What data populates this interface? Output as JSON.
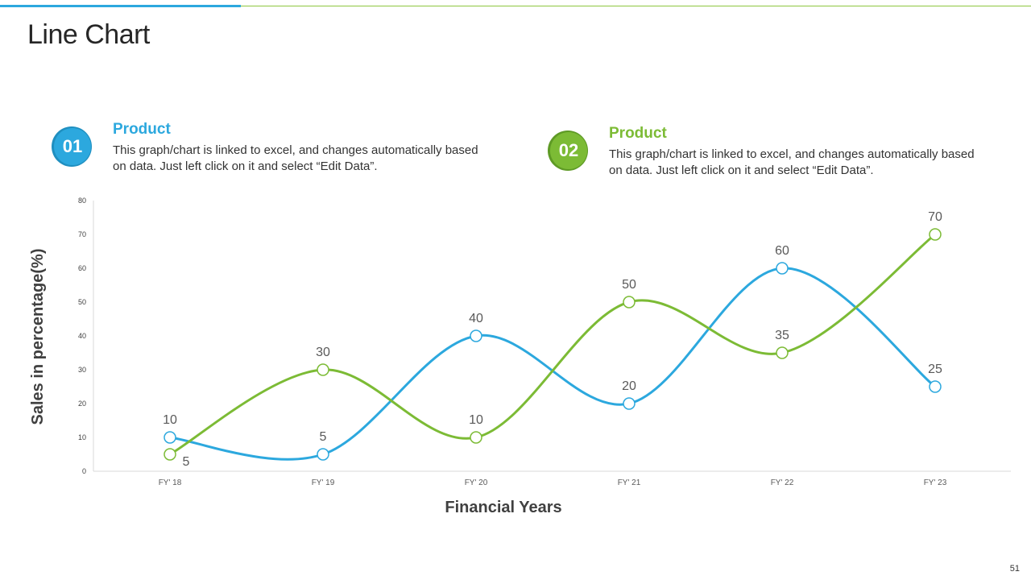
{
  "page": {
    "title": "Line Chart",
    "page_number": "51"
  },
  "legend": [
    {
      "badge": "01",
      "title": "Product",
      "description": "This graph/chart is linked to excel, and changes automatically based on data. Just left click on it and select “Edit Data”.",
      "color": "#2ca8de"
    },
    {
      "badge": "02",
      "title": "Product",
      "description": "This graph/chart is linked to excel, and changes automatically based on data. Just left click on it and select “Edit Data”.",
      "color": "#7cbb35"
    }
  ],
  "chart_data": {
    "type": "line",
    "categories": [
      "FY' 18",
      "FY' 19",
      "FY' 20",
      "FY' 21",
      "FY' 22",
      "FY' 23"
    ],
    "series": [
      {
        "name": "Product 01",
        "color": "#2ca8de",
        "values": [
          10,
          5,
          40,
          20,
          60,
          25
        ]
      },
      {
        "name": "Product 02",
        "color": "#7cbb35",
        "values": [
          5,
          30,
          10,
          50,
          35,
          70
        ]
      }
    ],
    "xlabel": "Financial Years",
    "ylabel": "Sales in percentage(%)",
    "ylim": [
      0,
      80
    ],
    "yticks": [
      0,
      10,
      20,
      30,
      40,
      50,
      60,
      70,
      80
    ]
  }
}
